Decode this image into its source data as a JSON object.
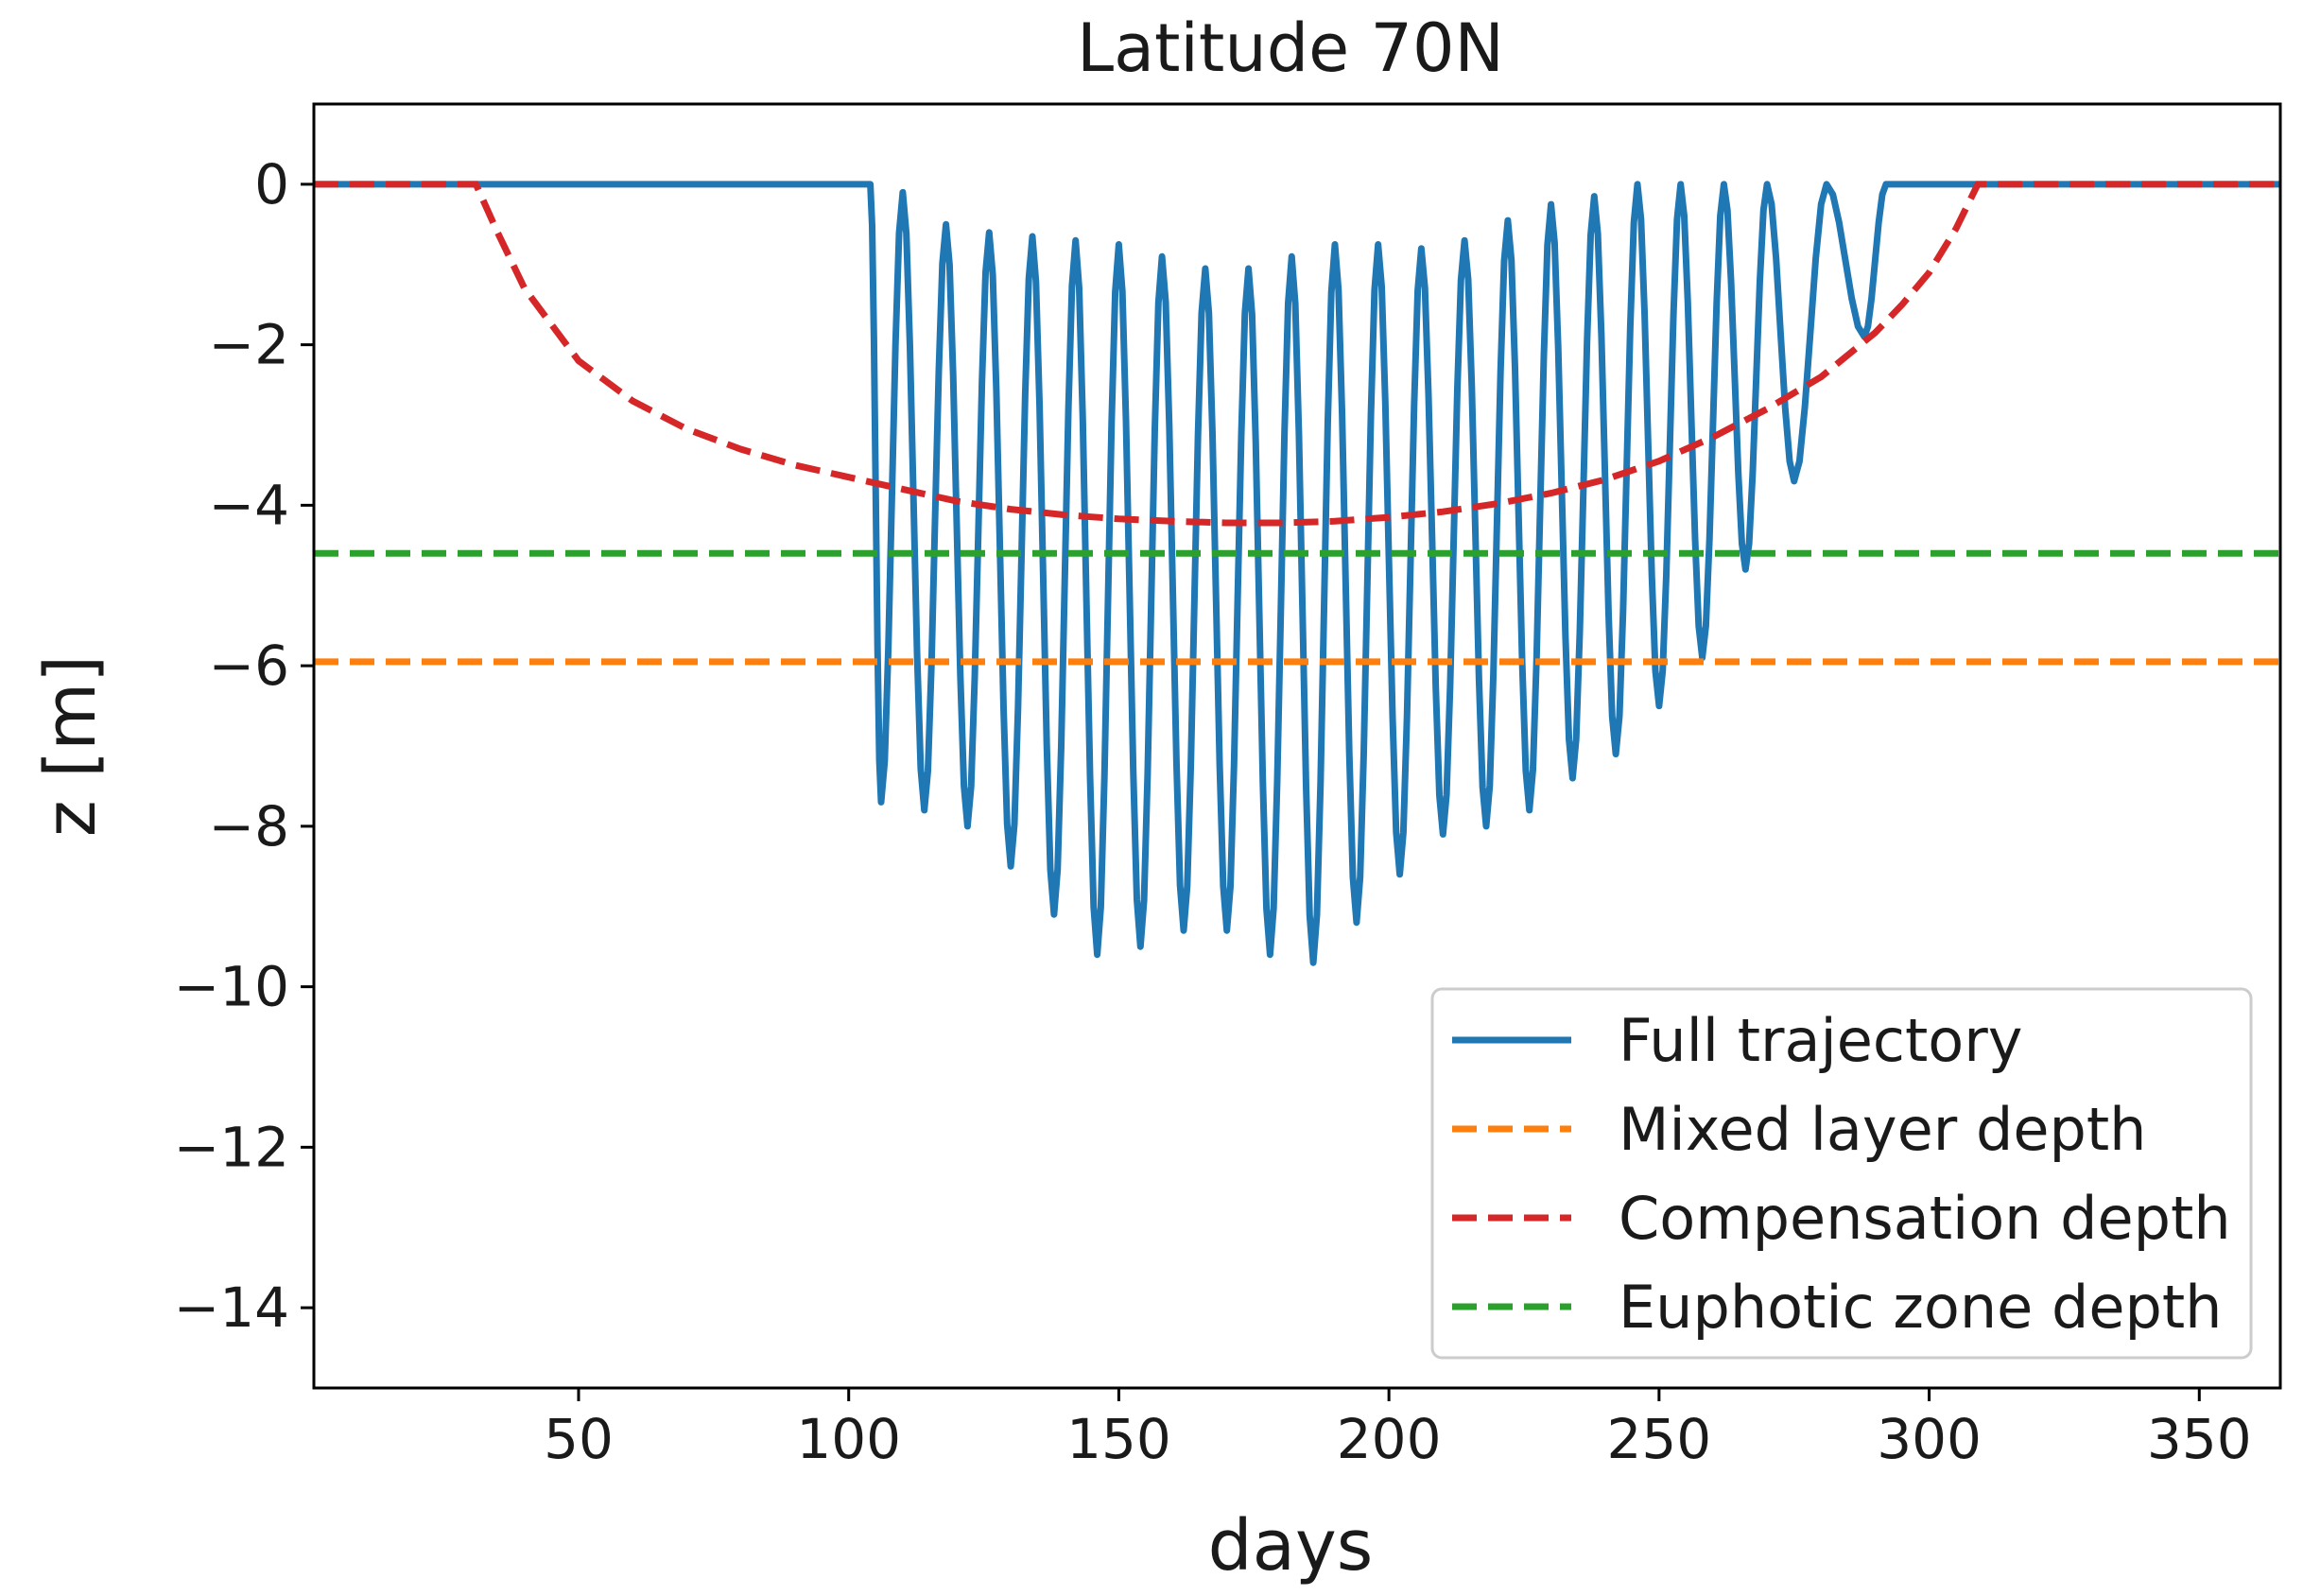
{
  "chart_data": {
    "type": "line",
    "title": "Latitude 70N",
    "xlabel": "days",
    "ylabel": "z [m]",
    "xlim": [
      1,
      365
    ],
    "ylim": [
      -15,
      1
    ],
    "xticks": [
      50,
      100,
      150,
      200,
      250,
      300,
      350
    ],
    "yticks": [
      0,
      -2,
      -4,
      -6,
      -8,
      -10,
      -12,
      -14
    ],
    "xtick_labels": [
      "50",
      "100",
      "150",
      "200",
      "250",
      "300",
      "350"
    ],
    "ytick_labels": [
      "0",
      "−2",
      "−4",
      "−6",
      "−8",
      "−10",
      "−12",
      "−14"
    ],
    "grid": false,
    "legend_position": "lower-right",
    "series": [
      {
        "name": "Full trajectory",
        "color": "#1f77b4",
        "style": "solid",
        "oscillation_days": [
          104,
          290
        ],
        "troughs": [
          {
            "day": 106,
            "z": -7.7
          },
          {
            "day": 114,
            "z": -7.8
          },
          {
            "day": 122,
            "z": -8.0
          },
          {
            "day": 130,
            "z": -8.5
          },
          {
            "day": 138,
            "z": -9.1
          },
          {
            "day": 146,
            "z": -9.6
          },
          {
            "day": 154,
            "z": -9.5
          },
          {
            "day": 162,
            "z": -9.3
          },
          {
            "day": 170,
            "z": -9.3
          },
          {
            "day": 178,
            "z": -9.6
          },
          {
            "day": 186,
            "z": -9.7
          },
          {
            "day": 194,
            "z": -9.2
          },
          {
            "day": 202,
            "z": -8.6
          },
          {
            "day": 210,
            "z": -8.1
          },
          {
            "day": 218,
            "z": -8.0
          },
          {
            "day": 226,
            "z": -7.8
          },
          {
            "day": 234,
            "z": -7.4
          },
          {
            "day": 242,
            "z": -7.1
          },
          {
            "day": 250,
            "z": -6.5
          },
          {
            "day": 258,
            "z": -5.9
          },
          {
            "day": 266,
            "z": -4.8
          },
          {
            "day": 275,
            "z": -3.7
          },
          {
            "day": 288,
            "z": -1.9
          }
        ],
        "peaks": [
          {
            "day": 110,
            "z": -0.1
          },
          {
            "day": 118,
            "z": -0.5
          },
          {
            "day": 126,
            "z": -0.6
          },
          {
            "day": 134,
            "z": -0.65
          },
          {
            "day": 142,
            "z": -0.7
          },
          {
            "day": 150,
            "z": -0.75
          },
          {
            "day": 158,
            "z": -0.9
          },
          {
            "day": 166,
            "z": -1.05
          },
          {
            "day": 174,
            "z": -1.05
          },
          {
            "day": 182,
            "z": -0.9
          },
          {
            "day": 190,
            "z": -0.75
          },
          {
            "day": 198,
            "z": -0.75
          },
          {
            "day": 206,
            "z": -0.8
          },
          {
            "day": 214,
            "z": -0.7
          },
          {
            "day": 222,
            "z": -0.45
          },
          {
            "day": 230,
            "z": -0.25
          },
          {
            "day": 238,
            "z": -0.15
          },
          {
            "day": 246,
            "z": 0.0
          },
          {
            "day": 254,
            "z": 0.0
          },
          {
            "day": 262,
            "z": 0.0
          },
          {
            "day": 270,
            "z": 0.0
          },
          {
            "day": 281,
            "z": 0.0
          }
        ]
      },
      {
        "name": "Mixed layer depth",
        "color": "#ff7f0e",
        "style": "dashed",
        "x": [
          1,
          365
        ],
        "y": [
          -5.95,
          -5.95
        ]
      },
      {
        "name": "Compensation depth",
        "color": "#d62728",
        "style": "dashed",
        "x": [
          1,
          31,
          35,
          40,
          50,
          60,
          70,
          80,
          90,
          100,
          110,
          120,
          130,
          140,
          150,
          160,
          170,
          180,
          190,
          200,
          210,
          220,
          230,
          240,
          250,
          260,
          270,
          280,
          290,
          295,
          300,
          305,
          309,
          365
        ],
        "y": [
          0.0,
          0.0,
          -0.6,
          -1.3,
          -2.2,
          -2.7,
          -3.05,
          -3.3,
          -3.5,
          -3.65,
          -3.8,
          -3.95,
          -4.05,
          -4.12,
          -4.17,
          -4.2,
          -4.22,
          -4.22,
          -4.2,
          -4.15,
          -4.08,
          -3.98,
          -3.85,
          -3.68,
          -3.45,
          -3.15,
          -2.8,
          -2.4,
          -1.85,
          -1.5,
          -1.1,
          -0.55,
          0.0,
          0.0
        ]
      },
      {
        "name": "Euphotic zone depth",
        "color": "#2ca02c",
        "style": "dashed",
        "x": [
          1,
          365
        ],
        "y": [
          -4.6,
          -4.6
        ]
      }
    ]
  }
}
